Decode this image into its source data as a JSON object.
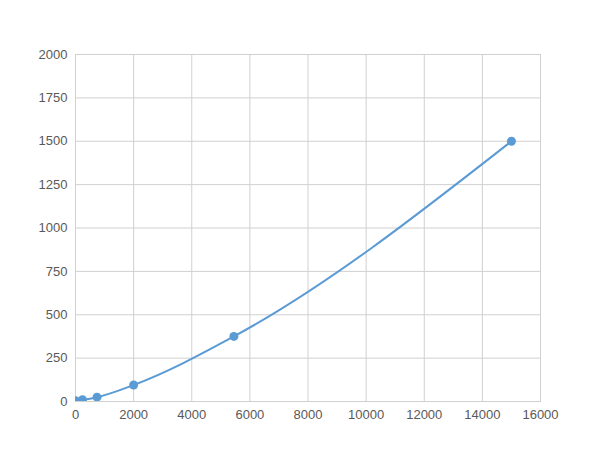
{
  "chart_data": {
    "type": "line",
    "x": [
      0,
      240,
      740,
      2000,
      5450,
      15000
    ],
    "values": [
      5,
      10,
      25,
      95,
      375,
      1500
    ],
    "color": "#5b9bd5",
    "marker": "circle",
    "xlim": [
      0,
      16000
    ],
    "xticks": [
      0,
      2000,
      4000,
      6000,
      8000,
      10000,
      12000,
      14000,
      16000
    ],
    "ylim": [
      0,
      2000
    ],
    "yticks": [
      0,
      250,
      500,
      750,
      1000,
      1250,
      1500,
      1750,
      2000
    ],
    "grid": true
  }
}
